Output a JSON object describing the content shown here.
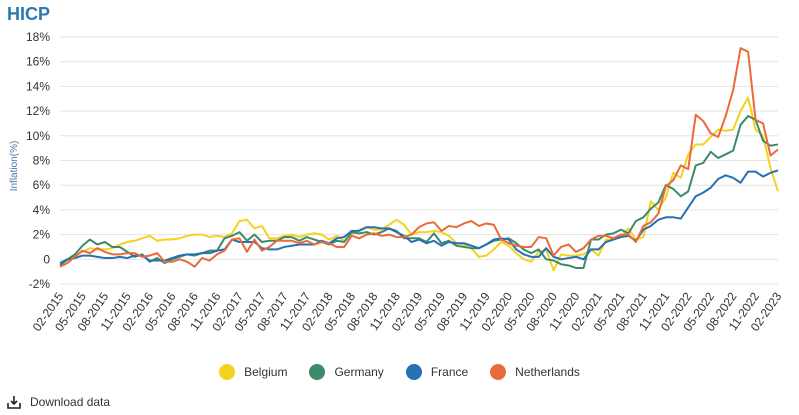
{
  "title": "HICP",
  "download_label": "Download data",
  "chart_data": {
    "type": "line",
    "ylabel": "Inflation(%)",
    "ylim": [
      -2,
      18
    ],
    "yticks": [
      -2,
      0,
      2,
      4,
      6,
      8,
      10,
      12,
      14,
      16,
      18
    ],
    "ytick_labels": [
      "-2%",
      "0",
      "2%",
      "4%",
      "6%",
      "8%",
      "10%",
      "12%",
      "14%",
      "16%",
      "18%"
    ],
    "x_start": "02-2015",
    "x": [
      "02-2015",
      "03-2015",
      "04-2015",
      "05-2015",
      "06-2015",
      "07-2015",
      "08-2015",
      "09-2015",
      "10-2015",
      "11-2015",
      "12-2015",
      "01-2016",
      "02-2016",
      "03-2016",
      "04-2016",
      "05-2016",
      "06-2016",
      "07-2016",
      "08-2016",
      "09-2016",
      "10-2016",
      "11-2016",
      "12-2016",
      "01-2017",
      "02-2017",
      "03-2017",
      "04-2017",
      "05-2017",
      "06-2017",
      "07-2017",
      "08-2017",
      "09-2017",
      "10-2017",
      "11-2017",
      "12-2017",
      "01-2018",
      "02-2018",
      "03-2018",
      "04-2018",
      "05-2018",
      "06-2018",
      "07-2018",
      "08-2018",
      "09-2018",
      "10-2018",
      "11-2018",
      "12-2018",
      "01-2019",
      "02-2019",
      "03-2019",
      "04-2019",
      "05-2019",
      "06-2019",
      "07-2019",
      "08-2019",
      "09-2019",
      "10-2019",
      "11-2019",
      "12-2019",
      "01-2020",
      "02-2020",
      "03-2020",
      "04-2020",
      "05-2020",
      "06-2020",
      "07-2020",
      "08-2020",
      "09-2020",
      "10-2020",
      "11-2020",
      "12-2020",
      "01-2021",
      "02-2021",
      "03-2021",
      "04-2021",
      "05-2021",
      "06-2021",
      "07-2021",
      "08-2021",
      "09-2021",
      "10-2021",
      "11-2021",
      "12-2021",
      "01-2022",
      "02-2022",
      "03-2022",
      "04-2022",
      "05-2022",
      "06-2022",
      "07-2022",
      "08-2022",
      "09-2022",
      "10-2022",
      "11-2022",
      "12-2022",
      "01-2023",
      "02-2023"
    ],
    "xtick_labels": [
      "02-2015",
      "05-2015",
      "08-2015",
      "11-2015",
      "02-2016",
      "05-2016",
      "08-2016",
      "11-2016",
      "02-2017",
      "05-2017",
      "08-2017",
      "11-2017",
      "02-2018",
      "05-2018",
      "08-2018",
      "11-2018",
      "02-2019",
      "05-2019",
      "08-2019",
      "11-2019",
      "02-2020",
      "05-2020",
      "08-2020",
      "11-2020",
      "02-2021",
      "05-2021",
      "08-2021",
      "11-2021",
      "02-2022",
      "05-2022",
      "08-2022",
      "11-2022",
      "02-2023"
    ],
    "grid": true,
    "legend_position": "bottom",
    "series": [
      {
        "name": "Belgium",
        "color": "#f5d21e",
        "values": [
          -0.4,
          -0.1,
          0.3,
          0.6,
          0.9,
          0.8,
          0.8,
          0.9,
          1.2,
          1.4,
          1.5,
          1.7,
          1.9,
          1.5,
          1.6,
          1.6,
          1.7,
          1.9,
          2.0,
          2.0,
          1.8,
          1.9,
          1.8,
          2.1,
          3.1,
          3.2,
          2.5,
          2.7,
          1.7,
          1.7,
          1.9,
          2.0,
          1.8,
          2.0,
          2.1,
          2.0,
          1.6,
          1.9,
          1.5,
          2.0,
          2.4,
          2.6,
          2.4,
          2.4,
          2.8,
          3.2,
          2.8,
          2.0,
          2.2,
          2.2,
          2.3,
          2.2,
          1.9,
          1.3,
          1.2,
          0.9,
          0.2,
          0.3,
          0.8,
          1.4,
          1.1,
          0.5,
          0.0,
          -0.2,
          0.6,
          0.8,
          -0.9,
          0.4,
          0.3,
          0.3,
          0.4,
          0.8,
          0.3,
          1.6,
          1.6,
          1.8,
          2.5,
          1.6,
          1.8,
          4.7,
          4.0,
          5.0,
          7.0,
          6.6,
          8.5,
          9.3,
          9.3,
          9.9,
          10.5,
          10.4,
          10.5,
          12.0,
          13.1,
          10.5,
          10.0,
          7.4,
          5.5
        ]
      },
      {
        "name": "Germany",
        "color": "#3d8a68",
        "values": [
          -0.5,
          0.0,
          0.4,
          1.1,
          1.6,
          1.2,
          1.4,
          1.0,
          1.0,
          0.6,
          0.2,
          0.4,
          -0.2,
          0.1,
          -0.3,
          0.0,
          0.2,
          0.4,
          0.3,
          0.5,
          0.7,
          0.7,
          1.7,
          1.9,
          2.2,
          1.5,
          2.0,
          1.4,
          1.5,
          1.5,
          1.8,
          1.8,
          1.5,
          1.8,
          1.6,
          1.4,
          1.2,
          1.5,
          1.4,
          2.2,
          2.1,
          2.2,
          2.0,
          2.2,
          2.5,
          2.3,
          1.7,
          1.7,
          1.7,
          1.4,
          2.1,
          1.3,
          1.5,
          1.1,
          1.0,
          0.9,
          0.9,
          1.2,
          1.5,
          1.6,
          1.7,
          1.3,
          0.8,
          0.5,
          0.8,
          0.0,
          -0.1,
          -0.4,
          -0.5,
          -0.7,
          -0.7,
          1.6,
          1.6,
          2.0,
          2.1,
          2.4,
          2.1,
          3.1,
          3.4,
          4.1,
          4.6,
          6.0,
          5.7,
          5.1,
          5.5,
          7.6,
          7.8,
          8.7,
          8.2,
          8.5,
          8.8,
          10.9,
          11.6,
          11.3,
          9.6,
          9.2,
          9.3
        ]
      },
      {
        "name": "France",
        "color": "#2670b3",
        "values": [
          -0.3,
          0.0,
          0.1,
          0.3,
          0.3,
          0.2,
          0.1,
          0.1,
          0.2,
          0.1,
          0.3,
          0.3,
          -0.1,
          -0.1,
          -0.1,
          0.1,
          0.3,
          0.4,
          0.4,
          0.5,
          0.5,
          0.7,
          0.8,
          1.6,
          1.4,
          1.4,
          1.4,
          0.9,
          0.8,
          0.8,
          1.0,
          1.1,
          1.2,
          1.2,
          1.2,
          1.5,
          1.3,
          1.7,
          1.8,
          2.3,
          2.3,
          2.6,
          2.6,
          2.5,
          2.5,
          2.2,
          1.9,
          1.4,
          1.6,
          1.3,
          1.5,
          1.1,
          1.4,
          1.3,
          1.3,
          1.1,
          0.9,
          1.2,
          1.6,
          1.7,
          1.6,
          0.8,
          0.4,
          0.2,
          0.2,
          0.9,
          0.2,
          0.0,
          0.1,
          0.2,
          0.0,
          0.8,
          0.8,
          1.4,
          1.6,
          1.8,
          1.9,
          1.5,
          2.4,
          2.7,
          3.2,
          3.4,
          3.4,
          3.3,
          4.2,
          5.1,
          5.4,
          5.8,
          6.5,
          6.8,
          6.6,
          6.2,
          7.1,
          7.1,
          6.7,
          7.0,
          7.2
        ]
      },
      {
        "name": "Netherlands",
        "color": "#ea6a3b",
        "values": [
          -0.6,
          -0.3,
          0.2,
          0.7,
          0.5,
          0.9,
          0.6,
          0.4,
          0.4,
          0.5,
          0.5,
          0.2,
          0.3,
          0.5,
          -0.2,
          -0.2,
          0.0,
          -0.2,
          -0.6,
          0.1,
          -0.1,
          0.4,
          0.7,
          1.6,
          1.7,
          0.6,
          1.6,
          0.7,
          1.0,
          1.5,
          1.5,
          1.5,
          1.3,
          1.5,
          1.2,
          1.4,
          1.3,
          1.0,
          1.0,
          1.9,
          1.7,
          2.0,
          2.1,
          1.9,
          2.0,
          1.8,
          1.8,
          2.0,
          2.6,
          2.9,
          3.0,
          2.3,
          2.7,
          2.6,
          2.9,
          3.1,
          2.7,
          2.9,
          2.8,
          1.6,
          1.3,
          1.1,
          1.0,
          1.0,
          1.8,
          1.7,
          0.3,
          1.0,
          1.2,
          0.6,
          0.9,
          1.6,
          1.9,
          1.9,
          1.7,
          2.0,
          2.0,
          1.4,
          2.7,
          3.0,
          3.7,
          5.9,
          6.4,
          7.6,
          7.3,
          11.7,
          11.2,
          10.2,
          9.9,
          11.6,
          13.7,
          17.1,
          16.8,
          11.3,
          11.0,
          8.4,
          8.9
        ]
      }
    ]
  }
}
